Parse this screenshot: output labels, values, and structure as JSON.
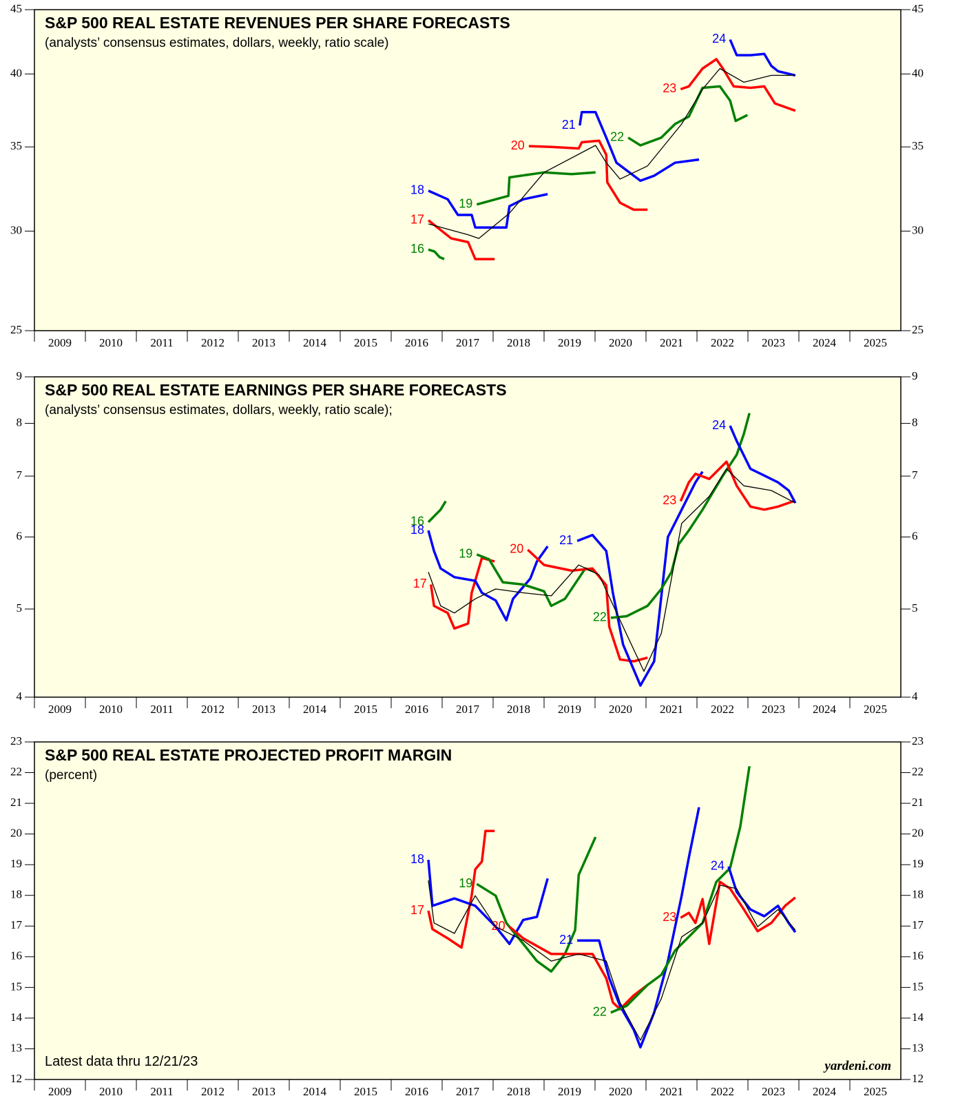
{
  "chart_data": [
    {
      "type": "line",
      "title": "S&P 500 REAL ESTATE REVENUES PER SHARE FORECASTS",
      "subtitle": "(analysts’ consensus estimates, dollars, weekly, ratio scale)",
      "log_scale": true,
      "ylim": [
        25,
        45
      ],
      "yticks": [
        25,
        30,
        35,
        40,
        45
      ],
      "xlim": [
        2009,
        2026
      ],
      "xticks": [
        2009,
        2010,
        2011,
        2012,
        2013,
        2014,
        2015,
        2016,
        2017,
        2018,
        2019,
        2020,
        2021,
        2022,
        2023,
        2024,
        2025
      ],
      "series": [
        {
          "name": "16",
          "color": "#008000",
          "x": [
            2016.73,
            2016.85,
            2016.95,
            2017.04
          ],
          "values": [
            29.0,
            28.9,
            28.6,
            28.5
          ]
        },
        {
          "name": "17",
          "color": "#ff0000",
          "x": [
            2016.73,
            2017.18,
            2017.51,
            2017.65,
            2018.03
          ],
          "values": [
            30.6,
            29.6,
            29.4,
            28.5,
            28.5
          ]
        },
        {
          "name": "18",
          "color": "#0000ff",
          "x": [
            2016.73,
            2017.11,
            2017.31,
            2017.58,
            2017.65,
            2018.26,
            2018.32,
            2018.59,
            2019.07
          ],
          "values": [
            32.3,
            31.8,
            30.9,
            30.9,
            30.2,
            30.2,
            31.4,
            31.8,
            32.1
          ]
        },
        {
          "name": "19",
          "color": "#008000",
          "x": [
            2017.68,
            2018.05,
            2018.3,
            2018.32,
            2019.0,
            2019.54,
            2020.01
          ],
          "values": [
            31.5,
            31.8,
            32.0,
            33.1,
            33.4,
            33.3,
            33.4
          ]
        },
        {
          "name": "20",
          "color": "#ff0000",
          "x": [
            2018.7,
            2019.14,
            2019.68,
            2019.74,
            2020.08,
            2020.22,
            2020.24,
            2020.49,
            2020.76,
            2021.03
          ],
          "values": [
            35.05,
            35.0,
            34.9,
            35.3,
            35.4,
            34.5,
            32.8,
            31.6,
            31.2,
            31.2
          ]
        },
        {
          "name": "21",
          "color": "#0000ff",
          "x": [
            2019.7,
            2019.74,
            2020.01,
            2020.22,
            2020.42,
            2020.89,
            2021.16,
            2021.57,
            2022.04
          ],
          "values": [
            36.4,
            37.3,
            37.3,
            35.6,
            34.0,
            32.9,
            33.2,
            34.0,
            34.2
          ]
        },
        {
          "name": "22",
          "color": "#008000",
          "x": [
            2020.65,
            2020.89,
            2021.3,
            2021.57,
            2021.84,
            2022.11,
            2022.45,
            2022.65,
            2022.76,
            2022.99
          ],
          "values": [
            35.6,
            35.1,
            35.6,
            36.5,
            37.0,
            39.0,
            39.1,
            38.1,
            36.7,
            37.1
          ]
        },
        {
          "name": "23",
          "color": "#ff0000",
          "x": [
            2021.68,
            2021.84,
            2022.11,
            2022.38,
            2022.51,
            2022.72,
            2023.05,
            2023.32,
            2023.53,
            2023.93
          ],
          "values": [
            38.9,
            39.1,
            40.4,
            41.1,
            40.4,
            39.1,
            39.0,
            39.1,
            37.9,
            37.4
          ]
        },
        {
          "name": "24",
          "color": "#0000ff",
          "x": [
            2022.65,
            2022.78,
            2023.05,
            2023.32,
            2023.46,
            2023.59,
            2023.93
          ],
          "values": [
            42.6,
            41.4,
            41.4,
            41.5,
            40.6,
            40.2,
            39.9
          ]
        },
        {
          "color": "#000000",
          "thin": true,
          "x": [
            2016.73,
            2017.51,
            2017.72,
            2018.32,
            2019.0,
            2020.01,
            2020.22,
            2020.49,
            2021.03,
            2021.7,
            2022.11,
            2022.45,
            2022.92,
            2023.46,
            2023.93
          ],
          "values": [
            30.4,
            29.8,
            29.6,
            31.0,
            33.4,
            35.1,
            34.0,
            33.0,
            33.8,
            36.5,
            38.9,
            40.4,
            39.4,
            39.9,
            39.9
          ]
        }
      ]
    },
    {
      "type": "line",
      "title": "S&P 500 REAL ESTATE EARNINGS PER SHARE FORECASTS",
      "subtitle": "(analysts’ consensus estimates, dollars, weekly, ratio scale);",
      "log_scale": true,
      "ylim": [
        4,
        9
      ],
      "yticks": [
        4,
        5,
        6,
        7,
        8,
        9
      ],
      "xlim": [
        2009,
        2026
      ],
      "xticks": [
        2009,
        2010,
        2011,
        2012,
        2013,
        2014,
        2015,
        2016,
        2017,
        2018,
        2019,
        2020,
        2021,
        2022,
        2023,
        2024,
        2025
      ],
      "series": [
        {
          "name": "16",
          "color": "#008000",
          "x": [
            2016.73,
            2016.97,
            2017.07
          ],
          "values": [
            6.23,
            6.43,
            6.57
          ]
        },
        {
          "name": "17",
          "color": "#ff0000",
          "x": [
            2016.78,
            2016.84,
            2017.11,
            2017.24,
            2017.51,
            2017.58,
            2017.78,
            2018.03
          ],
          "values": [
            5.32,
            5.04,
            4.95,
            4.76,
            4.82,
            5.21,
            5.69,
            5.64
          ]
        },
        {
          "name": "18",
          "color": "#0000ff",
          "x": [
            2016.73,
            2016.84,
            2016.97,
            2017.24,
            2017.65,
            2017.78,
            2018.05,
            2018.26,
            2018.39,
            2018.73,
            2018.86,
            2019.07
          ],
          "values": [
            6.1,
            5.79,
            5.54,
            5.42,
            5.37,
            5.21,
            5.11,
            4.86,
            5.13,
            5.4,
            5.64,
            5.86
          ]
        },
        {
          "name": "19",
          "color": "#008000",
          "x": [
            2017.68,
            2017.92,
            2018.19,
            2018.59,
            2019.0,
            2019.14,
            2019.41,
            2019.81,
            2020.01
          ],
          "values": [
            5.74,
            5.67,
            5.35,
            5.32,
            5.23,
            5.04,
            5.13,
            5.54,
            5.49
          ]
        },
        {
          "name": "20",
          "color": "#ff0000",
          "x": [
            2018.68,
            2019.0,
            2019.54,
            2019.95,
            2020.22,
            2020.28,
            2020.49,
            2020.76,
            2021.03
          ],
          "values": [
            5.81,
            5.59,
            5.51,
            5.54,
            5.31,
            4.78,
            4.4,
            4.38,
            4.42
          ]
        },
        {
          "name": "21",
          "color": "#0000ff",
          "x": [
            2019.65,
            2019.95,
            2020.22,
            2020.35,
            2020.55,
            2020.89,
            2021.16,
            2021.43,
            2021.7,
            2021.97,
            2022.11
          ],
          "values": [
            5.94,
            6.03,
            5.79,
            5.21,
            4.57,
            4.12,
            4.38,
            6.0,
            6.43,
            6.89,
            7.08
          ]
        },
        {
          "name": "22",
          "color": "#008000",
          "x": [
            2020.31,
            2020.62,
            2021.03,
            2021.3,
            2021.5,
            2021.64,
            2021.84,
            2022.11,
            2022.51,
            2022.78,
            2022.92,
            2023.03
          ],
          "values": [
            4.89,
            4.91,
            5.04,
            5.26,
            5.49,
            5.89,
            6.1,
            6.43,
            7.01,
            7.39,
            7.79,
            8.21
          ]
        },
        {
          "name": "23",
          "color": "#ff0000",
          "x": [
            2021.68,
            2021.84,
            2021.97,
            2022.24,
            2022.58,
            2022.78,
            2023.05,
            2023.32,
            2023.59,
            2023.93
          ],
          "values": [
            6.57,
            6.89,
            7.04,
            6.95,
            7.26,
            6.83,
            6.48,
            6.43,
            6.48,
            6.58
          ]
        },
        {
          "name": "24",
          "color": "#0000ff",
          "x": [
            2022.65,
            2022.78,
            2023.05,
            2023.32,
            2023.59,
            2023.8,
            2023.93
          ],
          "values": [
            7.95,
            7.65,
            7.13,
            7.01,
            6.89,
            6.75,
            6.54
          ]
        },
        {
          "color": "#000000",
          "thin": true,
          "x": [
            2016.73,
            2016.97,
            2017.24,
            2017.65,
            2018.05,
            2018.59,
            2019.14,
            2019.68,
            2020.08,
            2020.49,
            2020.96,
            2021.3,
            2021.7,
            2022.24,
            2022.58,
            2022.92,
            2023.46,
            2023.93
          ],
          "values": [
            5.49,
            5.04,
            4.95,
            5.13,
            5.26,
            5.21,
            5.17,
            5.59,
            5.45,
            4.86,
            4.27,
            4.7,
            6.21,
            6.65,
            7.13,
            6.83,
            6.75,
            6.54
          ]
        }
      ]
    },
    {
      "type": "line",
      "title": "S&P 500 REAL ESTATE PROJECTED PROFIT MARGIN",
      "subtitle": "(percent)",
      "note": "Latest data thru 12/21/23",
      "source": "yardeni.com",
      "log_scale": false,
      "ylim": [
        12,
        23
      ],
      "yticks": [
        12,
        13,
        14,
        15,
        16,
        17,
        18,
        19,
        20,
        21,
        22,
        23
      ],
      "xlim": [
        2009,
        2026
      ],
      "xticks": [
        2009,
        2010,
        2011,
        2012,
        2013,
        2014,
        2015,
        2016,
        2017,
        2018,
        2019,
        2020,
        2021,
        2022,
        2023,
        2024,
        2025
      ],
      "series": [
        {
          "name": "17",
          "color": "#ff0000",
          "x": [
            2016.73,
            2016.81,
            2017.11,
            2017.38,
            2017.58,
            2017.65,
            2017.78,
            2017.85,
            2018.03
          ],
          "values": [
            17.5,
            16.9,
            16.6,
            16.3,
            18.0,
            18.85,
            19.1,
            20.1,
            20.1
          ]
        },
        {
          "name": "18",
          "color": "#0000ff",
          "x": [
            2016.73,
            2016.81,
            2017.24,
            2017.65,
            2018.05,
            2018.32,
            2018.59,
            2018.86,
            2019.07
          ],
          "values": [
            19.16,
            17.66,
            17.9,
            17.66,
            16.98,
            16.42,
            17.2,
            17.3,
            18.55
          ]
        },
        {
          "name": "19",
          "color": "#008000",
          "x": [
            2017.68,
            2018.05,
            2018.26,
            2018.59,
            2018.86,
            2019.14,
            2019.41,
            2019.61,
            2019.68,
            2020.01
          ],
          "values": [
            18.37,
            17.99,
            17.1,
            16.42,
            15.86,
            15.52,
            16.09,
            16.87,
            18.67,
            19.9
          ]
        },
        {
          "name": "20",
          "color": "#ff0000",
          "x": [
            2018.32,
            2018.59,
            2019.14,
            2019.54,
            2019.95,
            2020.22,
            2020.35,
            2020.49,
            2020.76,
            2021.03
          ],
          "values": [
            16.98,
            16.6,
            16.09,
            16.09,
            16.09,
            15.3,
            14.51,
            14.29,
            14.74,
            15.08
          ]
        },
        {
          "name": "21",
          "color": "#0000ff",
          "x": [
            2019.65,
            2020.08,
            2020.28,
            2020.49,
            2020.76,
            2020.89,
            2021.16,
            2021.43,
            2021.7,
            2021.84,
            2022.04
          ],
          "values": [
            16.53,
            16.53,
            15.3,
            14.4,
            13.62,
            13.05,
            14.18,
            15.86,
            17.99,
            19.23,
            20.87
          ]
        },
        {
          "name": "22",
          "color": "#008000",
          "x": [
            2020.31,
            2020.62,
            2021.03,
            2021.3,
            2021.57,
            2021.84,
            2022.11,
            2022.38,
            2022.65,
            2022.85,
            2023.03
          ],
          "values": [
            14.18,
            14.4,
            15.08,
            15.41,
            16.2,
            16.65,
            17.1,
            18.44,
            18.89,
            20.24,
            22.21
          ]
        },
        {
          "name": "23",
          "color": "#ff0000",
          "x": [
            2021.68,
            2021.84,
            2021.97,
            2022.11,
            2022.24,
            2022.45,
            2022.65,
            2022.92,
            2023.19,
            2023.46,
            2023.73,
            2023.93
          ],
          "values": [
            17.27,
            17.43,
            17.1,
            17.88,
            16.42,
            18.44,
            18.22,
            17.54,
            16.83,
            17.1,
            17.66,
            17.93
          ]
        },
        {
          "name": "24",
          "color": "#0000ff",
          "x": [
            2022.62,
            2022.78,
            2023.05,
            2023.32,
            2023.59,
            2023.8,
            2023.93
          ],
          "values": [
            18.94,
            18.11,
            17.54,
            17.32,
            17.66,
            17.1,
            16.8
          ]
        },
        {
          "color": "#000000",
          "thin": true,
          "x": [
            2016.73,
            2016.84,
            2017.24,
            2017.65,
            2018.05,
            2018.59,
            2019.14,
            2019.68,
            2020.22,
            2020.49,
            2020.89,
            2021.3,
            2021.7,
            2022.11,
            2022.45,
            2022.78,
            2023.19,
            2023.59,
            2023.93
          ],
          "values": [
            18.49,
            17.1,
            16.76,
            17.99,
            16.98,
            16.53,
            15.86,
            16.09,
            15.86,
            14.51,
            13.28,
            14.63,
            16.65,
            17.1,
            18.33,
            18.22,
            16.98,
            17.54,
            16.87
          ]
        }
      ]
    }
  ]
}
